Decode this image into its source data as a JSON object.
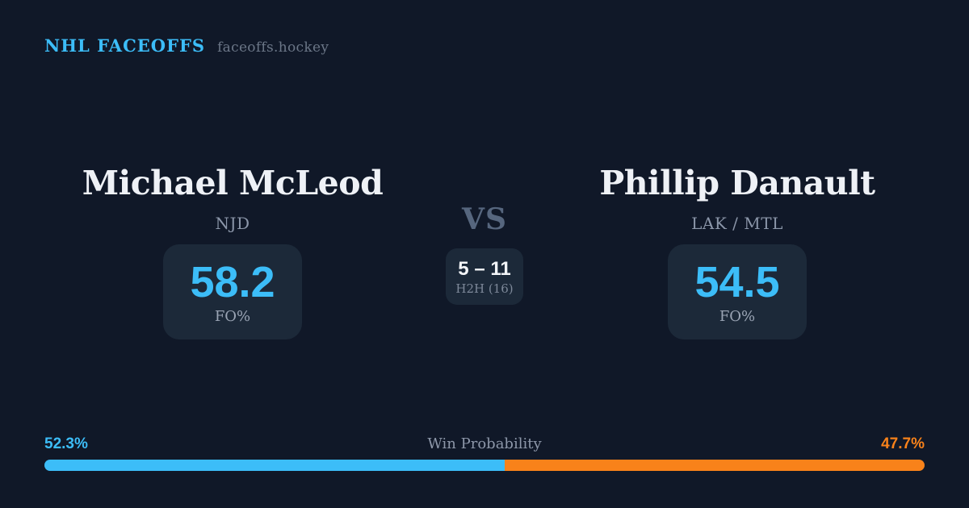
{
  "header": {
    "brand": "NHL FACEOFFS",
    "site": "faceoffs.hockey"
  },
  "players": {
    "left": {
      "name": "Michael McLeod",
      "team": "NJD",
      "stat_value": "58.2",
      "stat_label": "FO%"
    },
    "right": {
      "name": "Phillip Danault",
      "team": "LAK / MTL",
      "stat_value": "54.5",
      "stat_label": "FO%"
    }
  },
  "matchup": {
    "vs_label": "VS",
    "h2h_score": "5 – 11",
    "h2h_label": "H2H (16)"
  },
  "win_probability": {
    "label": "Win Probability",
    "left_pct": "52.3%",
    "right_pct": "47.7%",
    "left_value": 52.3,
    "right_value": 47.7
  },
  "colors": {
    "background": "#101828",
    "card": "#1c2939",
    "blue": "#3cbdf8",
    "orange": "#f8821a"
  }
}
